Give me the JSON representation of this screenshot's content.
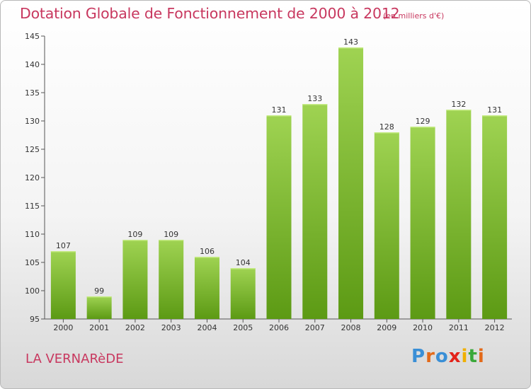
{
  "header": {
    "title": "Dotation Globale de Fonctionnement de 2000 à 2012",
    "unit": "(en milliers d'€)"
  },
  "footer": {
    "commune": "LA VERNARèDE",
    "logo": [
      "P",
      "r",
      "o",
      "x",
      "i",
      "t",
      "i"
    ],
    "logo_colors": [
      "#3a8fd6",
      "#e36a1a",
      "#3a8fd6",
      "#e3231a",
      "#f0b000",
      "#3aa83a",
      "#e36a1a"
    ]
  },
  "colors": {
    "bar_top": "#9fd352",
    "bar_bottom": "#5c9a14",
    "axis": "#555555",
    "grid": "#cccccc"
  },
  "chart_data": {
    "type": "bar",
    "title": "Dotation Globale de Fonctionnement de 2000 à 2012",
    "subtitle": "(en milliers d'€)",
    "xlabel": "",
    "ylabel": "",
    "categories": [
      "2000",
      "2001",
      "2002",
      "2003",
      "2004",
      "2005",
      "2006",
      "2007",
      "2008",
      "2009",
      "2010",
      "2011",
      "2012"
    ],
    "values": [
      107,
      99,
      109,
      109,
      106,
      104,
      131,
      133,
      143,
      128,
      129,
      132,
      131
    ],
    "ylim": [
      95,
      145
    ],
    "yticks": [
      95,
      100,
      105,
      110,
      115,
      120,
      125,
      130,
      135,
      140,
      145
    ],
    "grid": false,
    "legend": "none"
  }
}
